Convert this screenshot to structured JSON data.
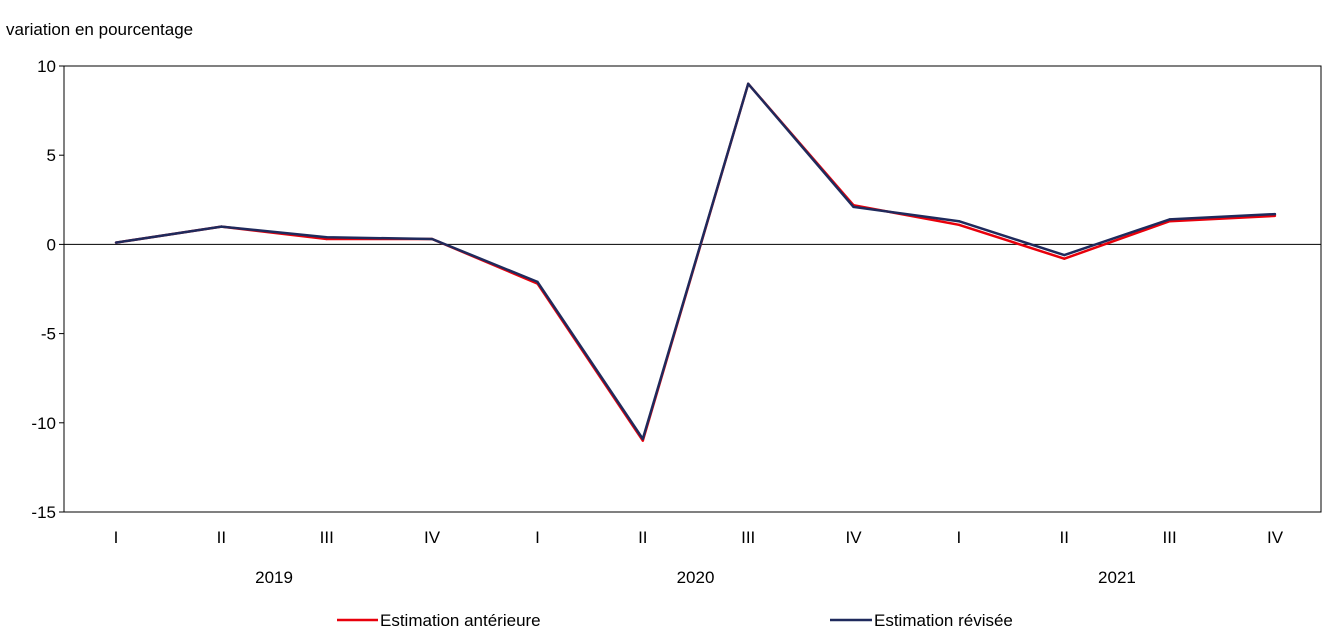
{
  "chart_data": {
    "type": "line",
    "ylabel": "variation en pourcentage",
    "ylim": [
      -15,
      10
    ],
    "yticks": [
      10,
      5,
      0,
      -5,
      -10,
      -15
    ],
    "ytick_labels": [
      "10",
      "5",
      "0",
      "-5",
      "-10",
      "-15"
    ],
    "categories": [
      "I",
      "II",
      "III",
      "IV",
      "I",
      "II",
      "III",
      "IV",
      "I",
      "II",
      "III",
      "IV"
    ],
    "groups": [
      {
        "label": "2019",
        "start": 0,
        "end": 3
      },
      {
        "label": "2020",
        "start": 4,
        "end": 7
      },
      {
        "label": "2021",
        "start": 8,
        "end": 11
      }
    ],
    "series": [
      {
        "name": "Estimation antérieure",
        "color": "#e8000b",
        "values": [
          0.1,
          1.0,
          0.3,
          0.3,
          -2.2,
          -11.0,
          9.0,
          2.2,
          1.1,
          -0.8,
          1.3,
          1.6
        ]
      },
      {
        "name": "Estimation révisée",
        "color": "#1f2a5c",
        "values": [
          0.1,
          1.0,
          0.4,
          0.3,
          -2.1,
          -10.9,
          9.0,
          2.1,
          1.3,
          -0.6,
          1.4,
          1.7
        ]
      }
    ],
    "legend_position": "bottom",
    "grid": false
  }
}
